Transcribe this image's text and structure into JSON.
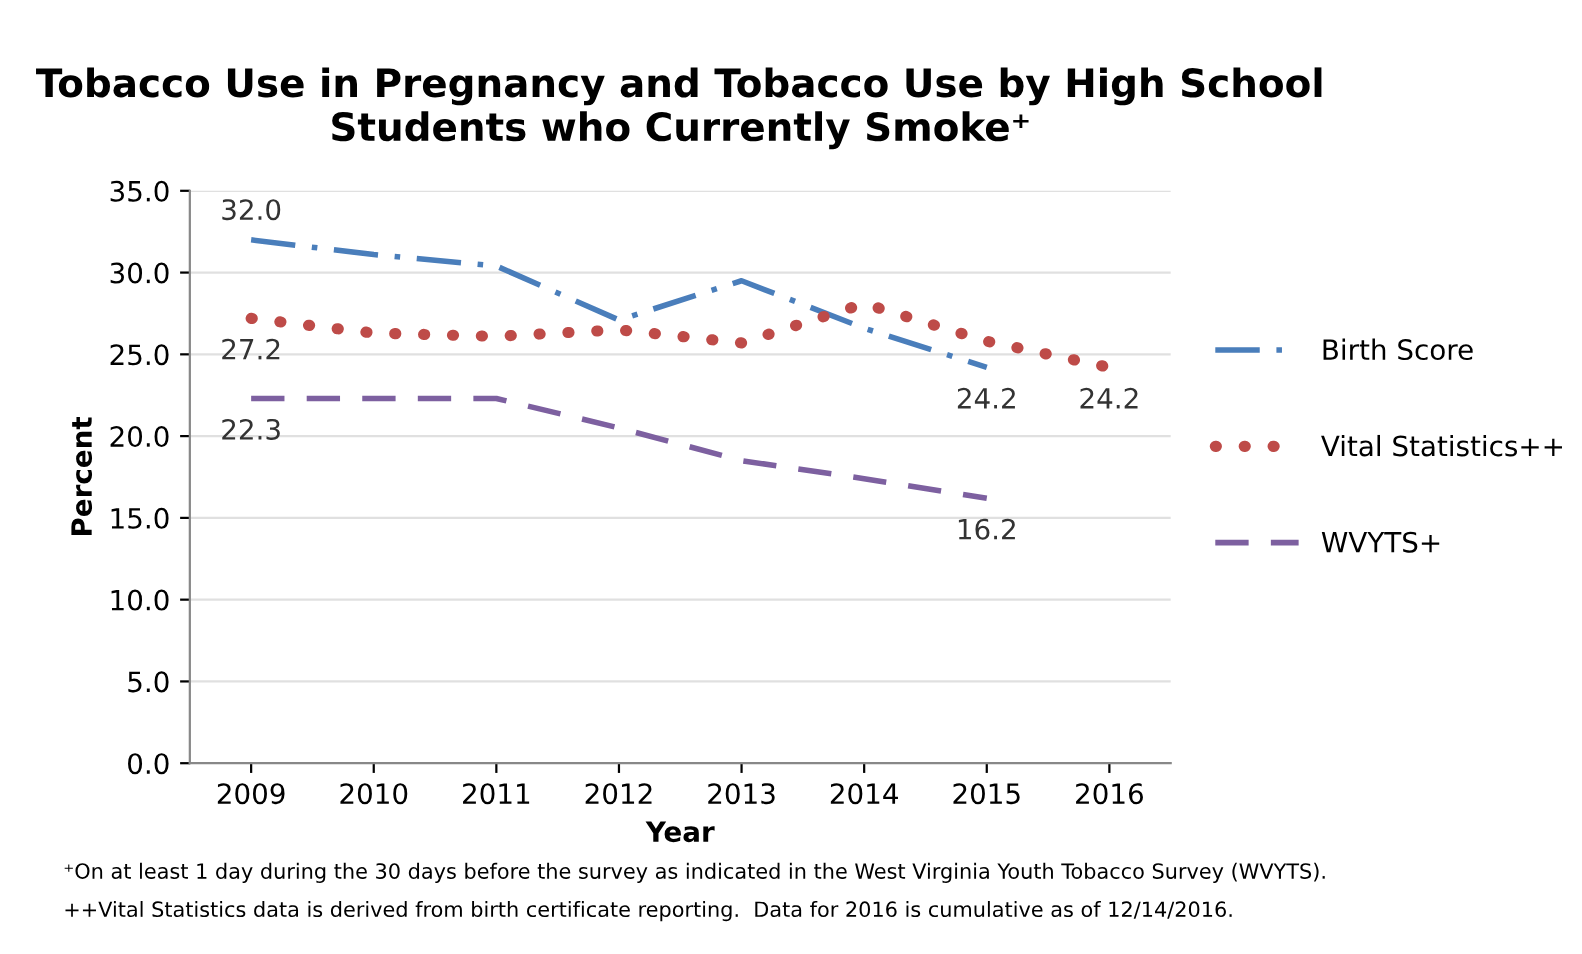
{
  "chart_data": {
    "type": "line",
    "title": "Tobacco Use in Pregnancy and Tobacco Use by High School\nStudents who Currently Smoke⁺",
    "xlabel": "Year",
    "ylabel": "Percent",
    "categories": [
      "2009",
      "2010",
      "2011",
      "2012",
      "2013",
      "2014",
      "2015",
      "2016"
    ],
    "series": [
      {
        "name": "Birth Score",
        "color": "#4a7ebb",
        "line_style": "dashdot",
        "values": [
          32.0,
          31.1,
          30.4,
          27.1,
          29.5,
          26.6,
          24.2,
          null
        ],
        "value_labels": [
          "32.0",
          null,
          null,
          null,
          null,
          null,
          "24.2",
          null
        ]
      },
      {
        "name": "Vital Statistics++",
        "color": "#be4b48",
        "line_style": "dotted",
        "values": [
          27.2,
          26.3,
          26.1,
          26.5,
          25.7,
          28.1,
          25.8,
          24.2
        ],
        "value_labels": [
          "27.2",
          null,
          null,
          null,
          null,
          null,
          null,
          "24.2"
        ]
      },
      {
        "name": "WVYTS+",
        "color": "#7d60a0",
        "line_style": "dashed",
        "values": [
          22.3,
          22.3,
          22.3,
          20.5,
          18.5,
          17.4,
          16.2,
          null
        ],
        "value_labels": [
          "22.3",
          null,
          null,
          null,
          null,
          null,
          "16.2",
          null
        ]
      }
    ],
    "ylim": [
      0,
      35
    ],
    "yticks": [
      {
        "value": 0,
        "label": "0.0"
      },
      {
        "value": 5,
        "label": "5.0"
      },
      {
        "value": 10,
        "label": "10.0"
      },
      {
        "value": 15,
        "label": "15.0"
      },
      {
        "value": 20,
        "label": "20.0"
      },
      {
        "value": 25,
        "label": "25.0"
      },
      {
        "value": 30,
        "label": "30.0"
      },
      {
        "value": 35,
        "label": "35.0"
      }
    ],
    "grid": "y",
    "legend": "right",
    "annotations": [
      "⁺On at least 1 day during the 30 days before the survey as indicated in the West Virginia Youth Tobacco Survey (WVYTS).",
      "++Vital Statistics data is derived from birth certificate reporting.  Data for 2016 is cumulative as of 12/14/2016."
    ]
  }
}
